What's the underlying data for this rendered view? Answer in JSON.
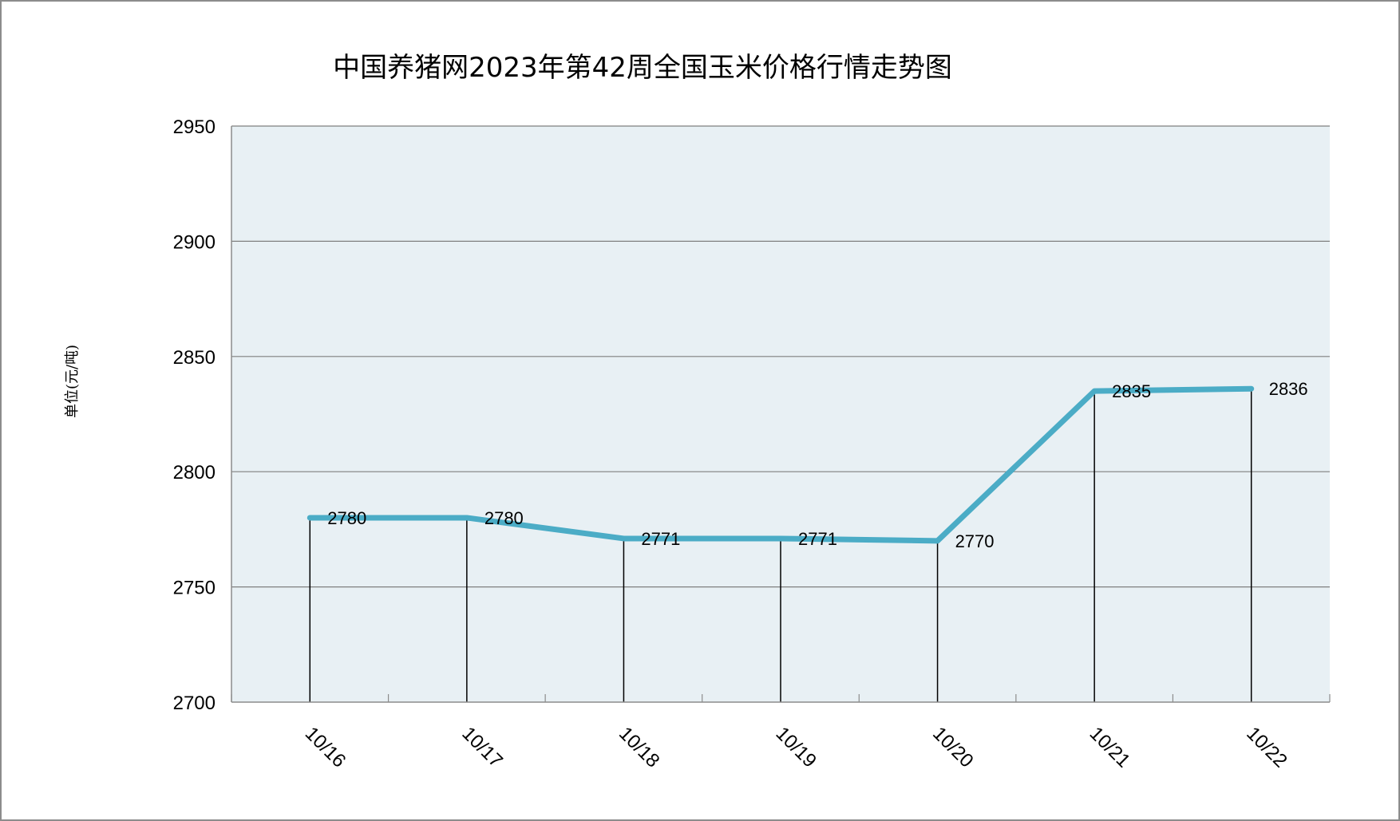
{
  "chart_data": {
    "type": "line",
    "title": "中国养猪网2023年第42周全国玉米价格行情走势图",
    "ylabel": "单位(元/吨)",
    "xlabel": "",
    "categories": [
      "10/16",
      "10/17",
      "10/18",
      "10/19",
      "10/20",
      "10/21",
      "10/22"
    ],
    "series": [
      {
        "values": [
          2780,
          2780,
          2771,
          2771,
          2770,
          2835,
          2836
        ]
      }
    ],
    "data_labels": [
      "2780",
      "2780",
      "2771",
      "2771",
      "2770",
      "2835",
      "2836"
    ],
    "ylim": [
      2700,
      2950
    ],
    "yticks": [
      2700,
      2750,
      2800,
      2850,
      2900,
      2950
    ],
    "ytick_labels": [
      "2700",
      "2750",
      "2800",
      "2850",
      "2900",
      "2950"
    ],
    "grid": true,
    "drop_lines": true,
    "colors": {
      "line": "#4bacc6",
      "plot_background": "#e8f0f4",
      "gridline": "#7f7f7f",
      "drop_line": "#000000"
    }
  }
}
